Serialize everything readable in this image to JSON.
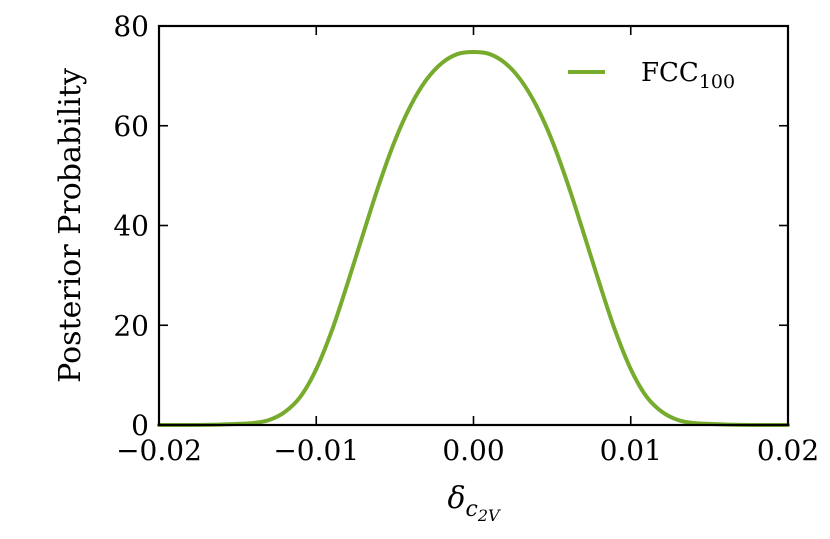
{
  "chart_data": {
    "type": "line",
    "title": "",
    "xlabel": {
      "symbol": "δ",
      "sub": "c",
      "subsub": "2V"
    },
    "ylabel": "Posterior Probability",
    "xlim": [
      -0.02,
      0.02
    ],
    "ylim": [
      0,
      80
    ],
    "xticks": [
      -0.02,
      -0.01,
      0.0,
      0.01,
      0.02
    ],
    "xtick_labels": [
      "−0.02",
      "−0.01",
      "0.00",
      "0.01",
      "0.02"
    ],
    "yticks": [
      0,
      20,
      40,
      60,
      80
    ],
    "ytick_labels": [
      "0",
      "20",
      "40",
      "60",
      "80"
    ],
    "grid": false,
    "legend": {
      "position": "top-right",
      "entries": [
        {
          "name": "FCC",
          "sub": "100"
        }
      ]
    },
    "series": [
      {
        "name": "FCC100",
        "color": "#77ab2e",
        "x": [
          -0.02,
          -0.018,
          -0.016,
          -0.014,
          -0.013,
          -0.012,
          -0.011,
          -0.01,
          -0.009,
          -0.008,
          -0.007,
          -0.006,
          -0.005,
          -0.004,
          -0.003,
          -0.002,
          -0.001,
          0.0,
          0.001,
          0.002,
          0.003,
          0.004,
          0.005,
          0.006,
          0.007,
          0.008,
          0.009,
          0.01,
          0.011,
          0.012,
          0.013,
          0.014,
          0.016,
          0.018,
          0.02
        ],
        "y": [
          0.0,
          0.0,
          0.1,
          0.4,
          1.0,
          2.6,
          5.7,
          11.2,
          19.0,
          28.5,
          38.5,
          48.3,
          57.0,
          64.0,
          69.2,
          72.6,
          74.4,
          74.8,
          74.4,
          72.6,
          69.2,
          64.0,
          57.0,
          48.3,
          38.5,
          28.5,
          19.0,
          11.2,
          5.7,
          2.6,
          1.0,
          0.4,
          0.1,
          0.0,
          0.0
        ]
      }
    ]
  }
}
